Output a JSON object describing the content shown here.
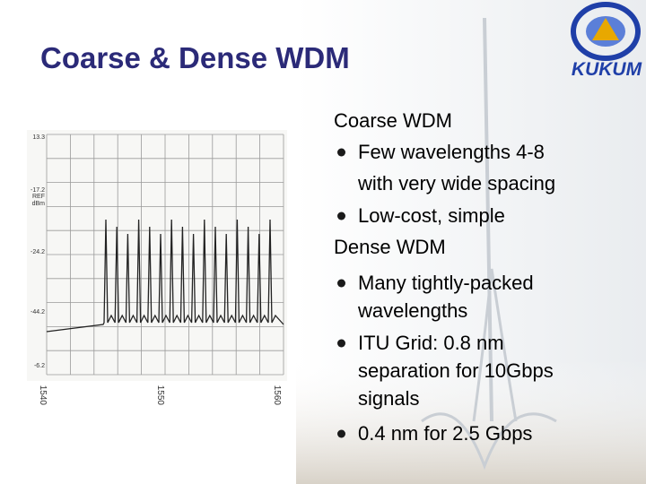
{
  "slide": {
    "title": "Coarse & Dense WDM",
    "logo_text": "KUKUM",
    "figure": {
      "x_labels": [
        "1540",
        "1550",
        "1560"
      ],
      "y_labels": [
        "13.3",
        "-17.2",
        "-24.2",
        "-44.2",
        "-6.2"
      ],
      "ref_label": "REF",
      "unit_label": "dBm"
    },
    "sections": [
      {
        "heading": "Coarse WDM",
        "bullets": [
          [
            "Few wavelengths 4-8",
            "with very wide spacing"
          ],
          [
            "Low-cost, simple"
          ]
        ]
      },
      {
        "heading": "Dense WDM",
        "bullets": [
          [
            "Many tightly-packed",
            "wavelengths"
          ],
          [
            "ITU Grid:  0.8 nm",
            "separation for 10Gbps",
            "signals"
          ],
          [
            "0.4 nm for 2.5 Gbps"
          ]
        ]
      }
    ]
  }
}
